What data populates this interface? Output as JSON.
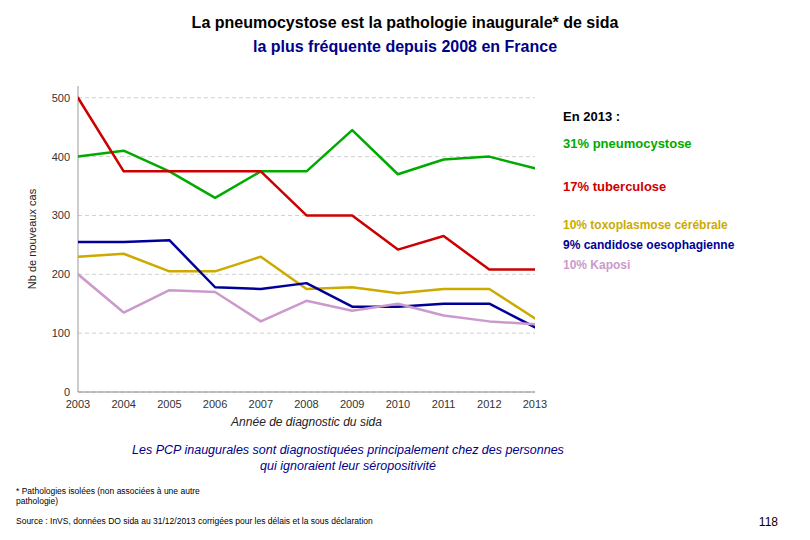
{
  "chart_data": {
    "type": "line",
    "title": "La pneumocystose est la pathologie inaugurale* de sida\nla plus fréquente depuis 2008 en France",
    "subtitle": "Les PCP inaugurales sont diagnostiquées principalement chez des personnes\nqui ignoraient leur séropositivité",
    "x_label": "Année de diagnostic du sida",
    "y_label": "Nb de nouveaux cas",
    "x": [
      2003,
      2004,
      2005,
      2006,
      2007,
      2008,
      2009,
      2010,
      2011,
      2012,
      2013
    ],
    "series": [
      {
        "color": "#00aa00",
        "values": [
          400,
          410,
          375,
          330,
          375,
          375,
          445,
          370,
          395,
          400,
          380
        ]
      },
      {
        "color": "#cc0000",
        "values": [
          500,
          375,
          375,
          375,
          375,
          300,
          300,
          242,
          265,
          208,
          208
        ]
      },
      {
        "color": "#ccaa00",
        "values": [
          230,
          235,
          205,
          205,
          230,
          175,
          178,
          168,
          175,
          175,
          125
        ]
      },
      {
        "color": "#000099",
        "values": [
          255,
          255,
          258,
          178,
          175,
          185,
          145,
          145,
          150,
          150,
          110
        ]
      },
      {
        "color": "#cc99cc",
        "values": [
          200,
          135,
          173,
          170,
          120,
          155,
          138,
          150,
          130,
          120,
          115
        ]
      }
    ],
    "xlim": [
      2003,
      2013
    ],
    "xticks": [
      2003,
      2004,
      2005,
      2006,
      2007,
      2008,
      2009,
      2010,
      2011,
      2012,
      2013
    ],
    "ylim": [
      0,
      520
    ],
    "yticks": [
      0,
      100,
      200,
      300,
      400,
      500
    ],
    "grid": true,
    "annotations": [
      {
        "text": "En 2013 :",
        "color": "#000000"
      },
      {
        "text": "31% pneumocystose",
        "color": "#00aa00"
      },
      {
        "text": "17% tuberculose",
        "color": "#cc0000"
      },
      {
        "text": "10% toxoplasmose cérébrale",
        "color": "#ccaa00"
      },
      {
        "text": "9% candidose oesophagienne",
        "color": "#000099"
      },
      {
        "text": "10% Kaposi",
        "color": "#cc99cc"
      }
    ],
    "footnotes": [
      "* Pathologies isolées (non associées à une autre\npathologie)",
      "Source : InVS, données DO sida au 31/12/2013 corrigées pour les délais et la sous déclaration"
    ],
    "page_number": "118"
  }
}
